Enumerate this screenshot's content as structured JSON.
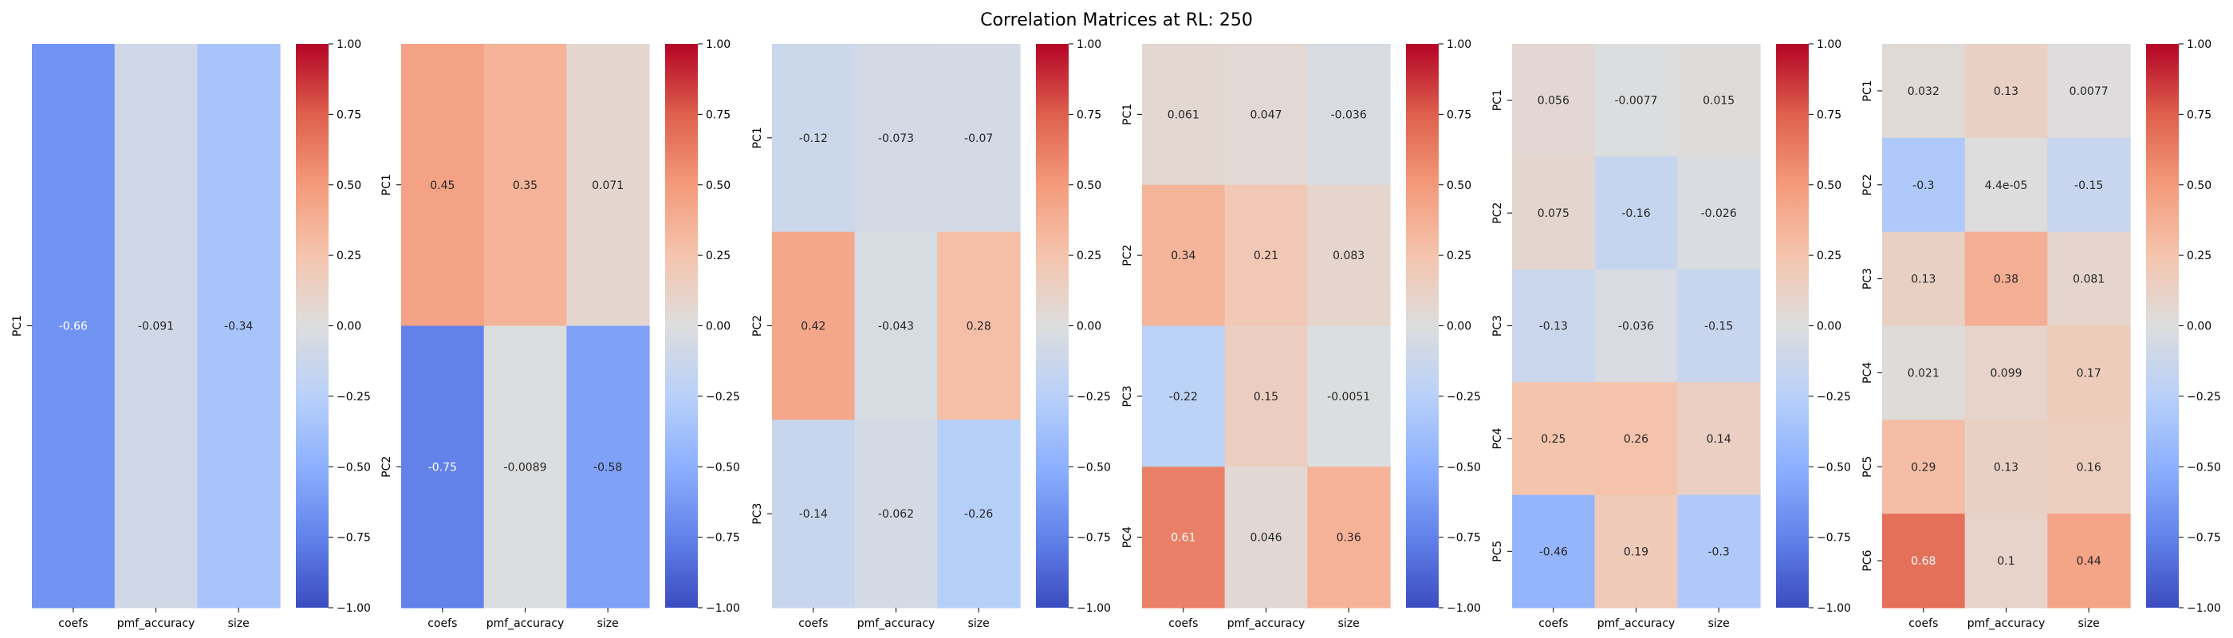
{
  "figure": {
    "title": "Correlation Matrices at RL: 250"
  },
  "colorbar": {
    "vmin": -1.0,
    "vmax": 1.0,
    "colormap": "coolwarm",
    "ticks": [
      "1.00",
      "0.75",
      "0.50",
      "0.25",
      "0.00",
      "−0.25",
      "−0.50",
      "−0.75",
      "−1.00"
    ]
  },
  "chart_data": [
    {
      "type": "heatmap",
      "columns": [
        "coefs",
        "pmf_accuracy",
        "size"
      ],
      "rows": [
        "PC1"
      ],
      "values": [
        [
          -0.66,
          -0.091,
          -0.34
        ]
      ],
      "labels": [
        [
          "-0.66",
          "-0.091",
          "-0.34"
        ]
      ],
      "zlim": [
        -1,
        1
      ]
    },
    {
      "type": "heatmap",
      "columns": [
        "coefs",
        "pmf_accuracy",
        "size"
      ],
      "rows": [
        "PC1",
        "PC2"
      ],
      "values": [
        [
          0.45,
          0.35,
          0.071
        ],
        [
          -0.75,
          -0.0089,
          -0.58
        ]
      ],
      "labels": [
        [
          "0.45",
          "0.35",
          "0.071"
        ],
        [
          "-0.75",
          "-0.0089",
          "-0.58"
        ]
      ],
      "zlim": [
        -1,
        1
      ]
    },
    {
      "type": "heatmap",
      "columns": [
        "coefs",
        "pmf_accuracy",
        "size"
      ],
      "rows": [
        "PC1",
        "PC2",
        "PC3"
      ],
      "values": [
        [
          -0.12,
          -0.073,
          -0.07
        ],
        [
          0.42,
          -0.043,
          0.28
        ],
        [
          -0.14,
          -0.062,
          -0.26
        ]
      ],
      "labels": [
        [
          "-0.12",
          "-0.073",
          "-0.07"
        ],
        [
          "0.42",
          "-0.043",
          "0.28"
        ],
        [
          "-0.14",
          "-0.062",
          "-0.26"
        ]
      ],
      "zlim": [
        -1,
        1
      ]
    },
    {
      "type": "heatmap",
      "columns": [
        "coefs",
        "pmf_accuracy",
        "size"
      ],
      "rows": [
        "PC1",
        "PC2",
        "PC3",
        "PC4"
      ],
      "values": [
        [
          0.061,
          0.047,
          -0.036
        ],
        [
          0.34,
          0.21,
          0.083
        ],
        [
          -0.22,
          0.15,
          -0.0051
        ],
        [
          0.61,
          0.046,
          0.36
        ]
      ],
      "labels": [
        [
          "0.061",
          "0.047",
          "-0.036"
        ],
        [
          "0.34",
          "0.21",
          "0.083"
        ],
        [
          "-0.22",
          "0.15",
          "-0.0051"
        ],
        [
          "0.61",
          "0.046",
          "0.36"
        ]
      ],
      "zlim": [
        -1,
        1
      ]
    },
    {
      "type": "heatmap",
      "columns": [
        "coefs",
        "pmf_accuracy",
        "size"
      ],
      "rows": [
        "PC1",
        "PC2",
        "PC3",
        "PC4",
        "PC5"
      ],
      "values": [
        [
          0.056,
          -0.0077,
          0.015
        ],
        [
          0.075,
          -0.16,
          -0.026
        ],
        [
          -0.13,
          -0.036,
          -0.15
        ],
        [
          0.25,
          0.26,
          0.14
        ],
        [
          -0.46,
          0.19,
          -0.3
        ]
      ],
      "labels": [
        [
          "0.056",
          "-0.0077",
          "0.015"
        ],
        [
          "0.075",
          "-0.16",
          "-0.026"
        ],
        [
          "-0.13",
          "-0.036",
          "-0.15"
        ],
        [
          "0.25",
          "0.26",
          "0.14"
        ],
        [
          "-0.46",
          "0.19",
          "-0.3"
        ]
      ],
      "zlim": [
        -1,
        1
      ]
    },
    {
      "type": "heatmap",
      "columns": [
        "coefs",
        "pmf_accuracy",
        "size"
      ],
      "rows": [
        "PC1",
        "PC2",
        "PC3",
        "PC4",
        "PC5",
        "PC6"
      ],
      "values": [
        [
          0.032,
          0.13,
          0.0077
        ],
        [
          -0.3,
          4.4e-05,
          -0.15
        ],
        [
          0.13,
          0.38,
          0.081
        ],
        [
          0.021,
          0.099,
          0.17
        ],
        [
          0.29,
          0.13,
          0.16
        ],
        [
          0.68,
          0.1,
          0.44
        ]
      ],
      "labels": [
        [
          "0.032",
          "0.13",
          "0.0077"
        ],
        [
          "-0.3",
          "4.4e-05",
          "-0.15"
        ],
        [
          "0.13",
          "0.38",
          "0.081"
        ],
        [
          "0.021",
          "0.099",
          "0.17"
        ],
        [
          "0.29",
          "0.13",
          "0.16"
        ],
        [
          "0.68",
          "0.1",
          "0.44"
        ]
      ],
      "zlim": [
        -1,
        1
      ]
    }
  ]
}
